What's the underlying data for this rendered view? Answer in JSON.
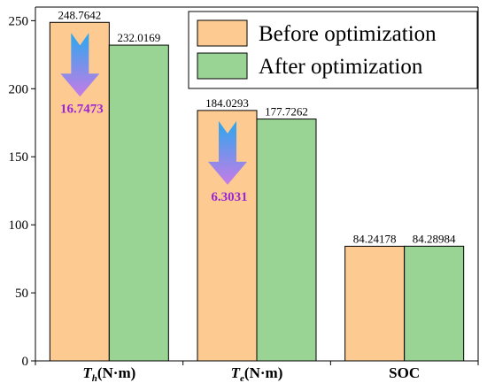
{
  "chart_data": {
    "type": "bar",
    "ylim": [
      0,
      260
    ],
    "yticks": [
      0,
      50,
      100,
      150,
      200,
      250
    ],
    "categories": [
      {
        "main": "T",
        "sub": "h",
        "unit": "(N·m)"
      },
      {
        "main": "T",
        "sub": "e",
        "unit": "(N·m)"
      },
      {
        "main": "SOC",
        "sub": "",
        "unit": ""
      }
    ],
    "series": [
      {
        "name": "Before optimization",
        "color": "#FDCB91",
        "values": [
          248.7642,
          184.0293,
          84.24178
        ],
        "labels": [
          "248.7642",
          "184.0293",
          "84.24178"
        ]
      },
      {
        "name": "After optimization",
        "color": "#9AD495",
        "values": [
          232.0169,
          177.7262,
          84.28984
        ],
        "labels": [
          "232.0169",
          "177.7262",
          "84.28984"
        ]
      }
    ],
    "reductions": [
      {
        "category_index": 0,
        "label": "16.7473"
      },
      {
        "category_index": 1,
        "label": "6.3031"
      }
    ],
    "reduction_color": "#9B26D6",
    "legend_position": "top-right"
  }
}
